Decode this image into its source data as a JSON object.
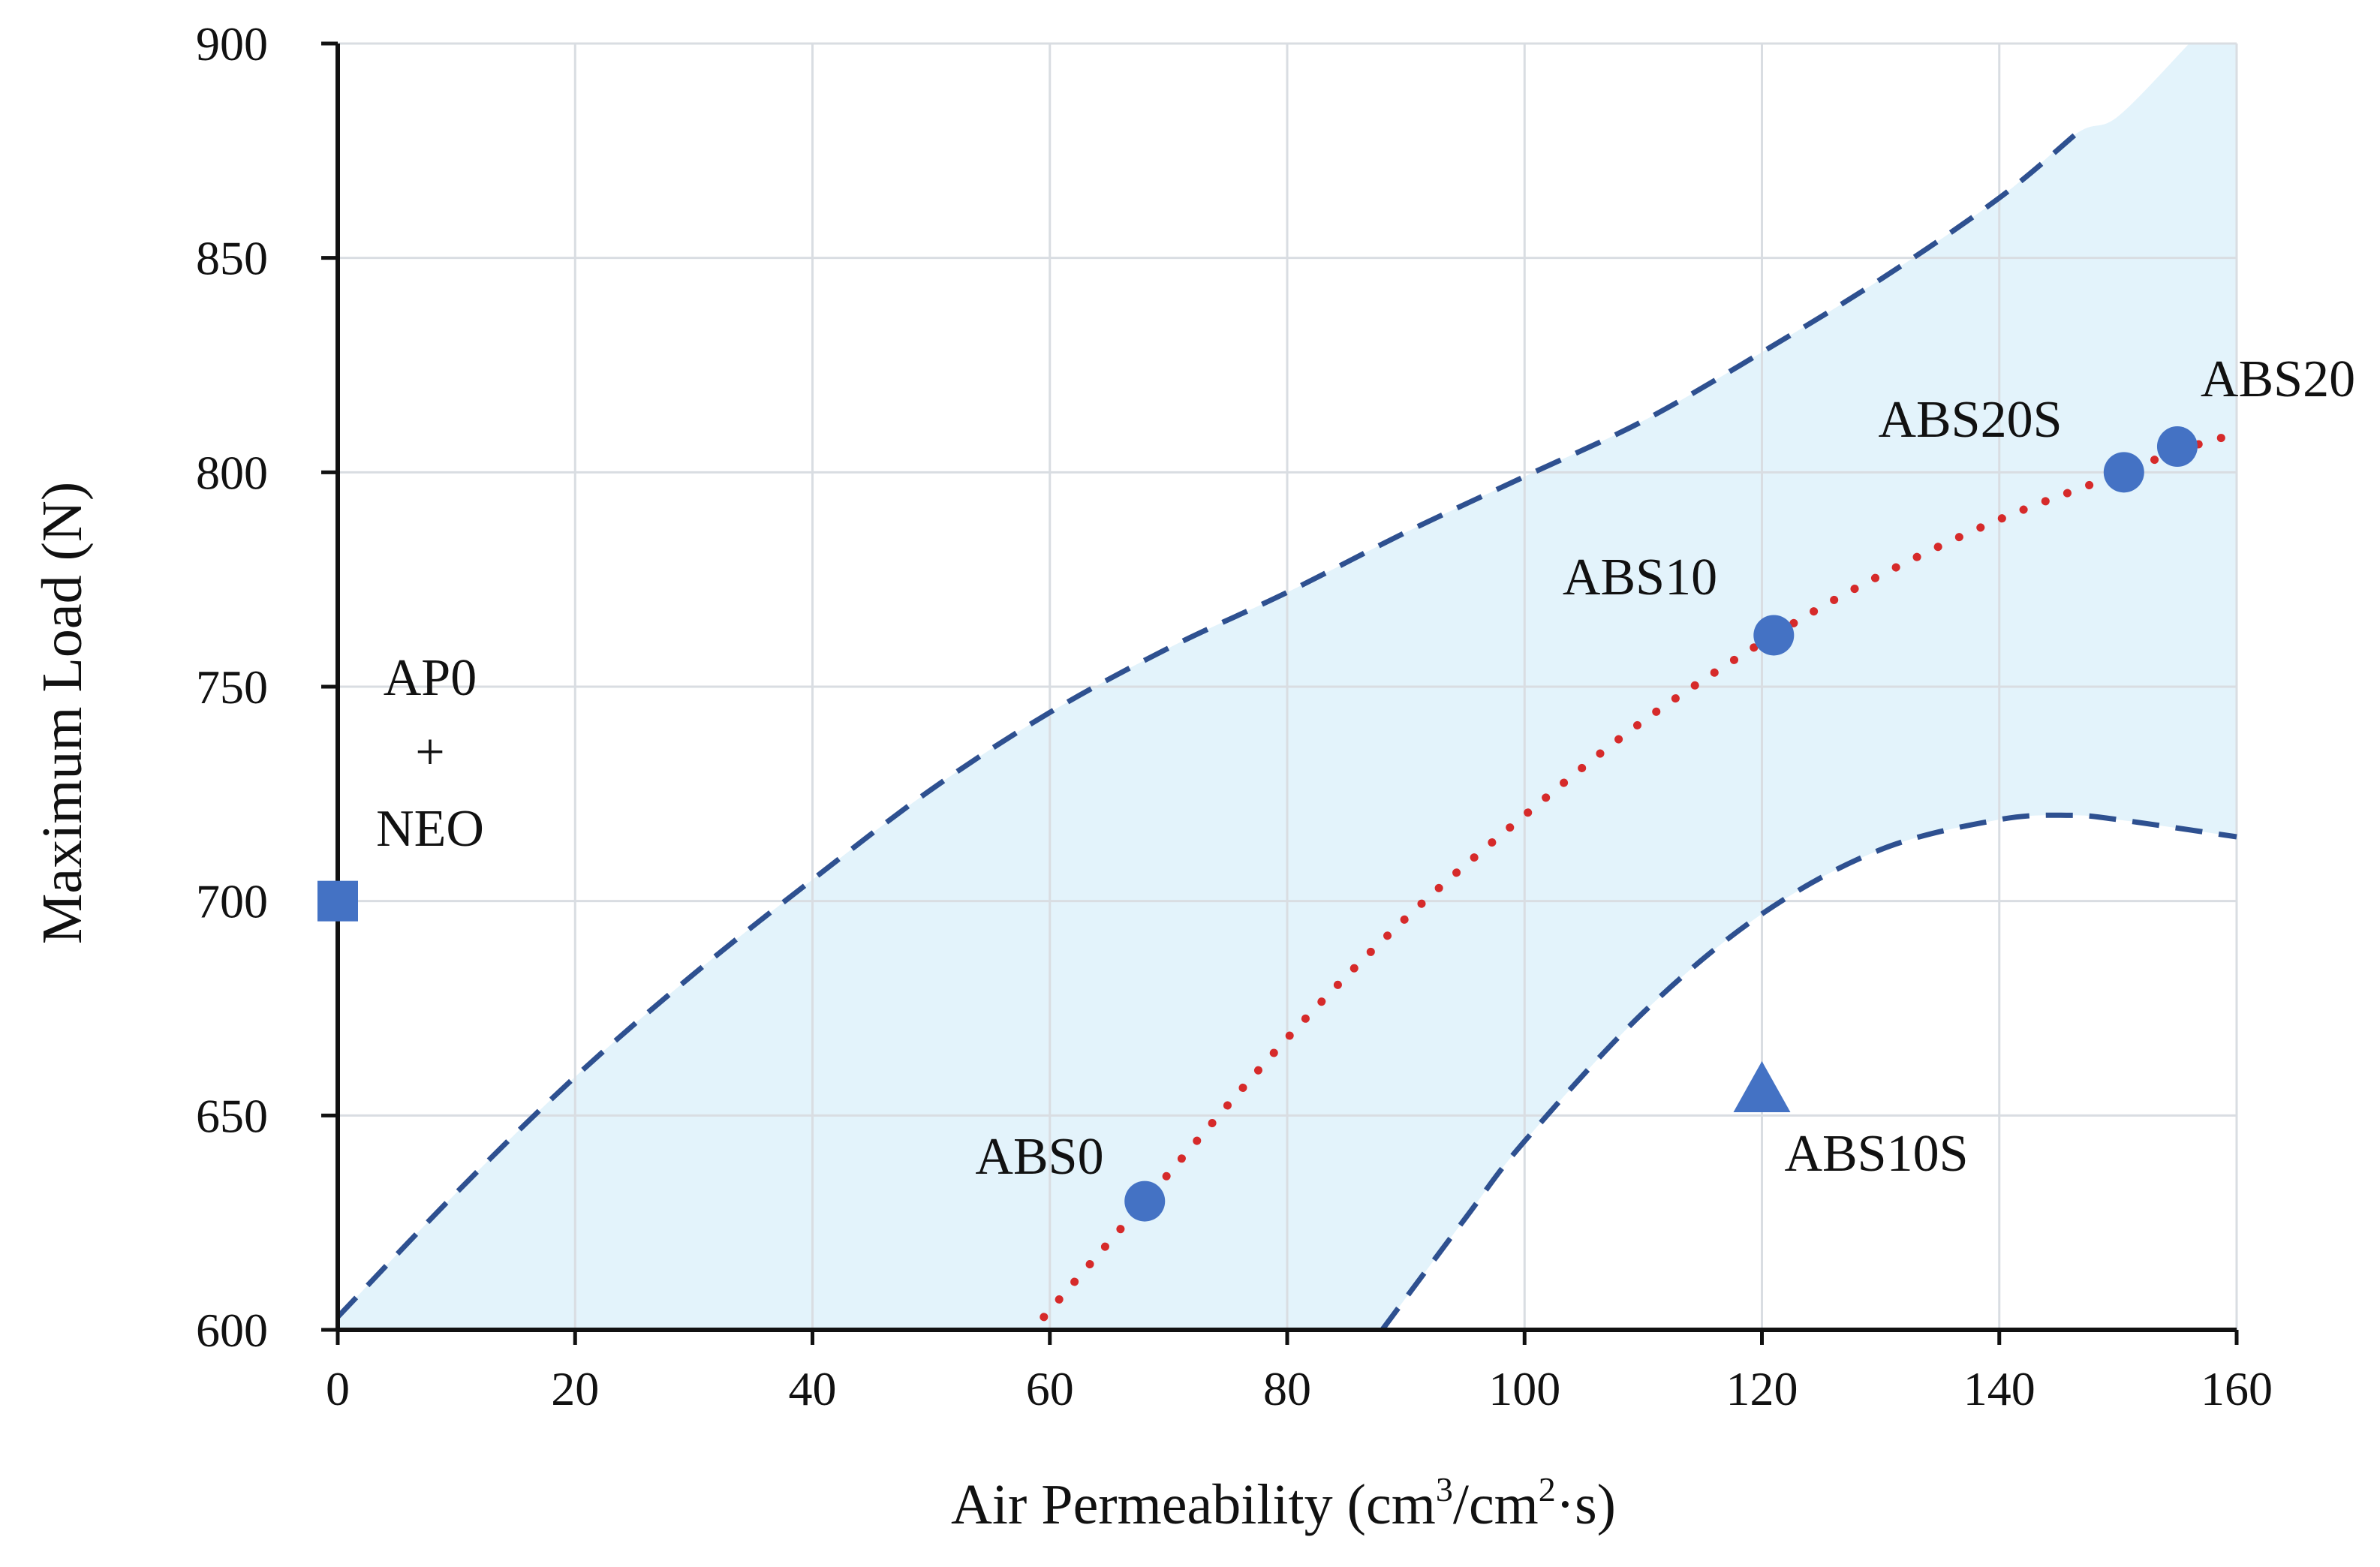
{
  "chart_data": {
    "type": "scatter",
    "xlabel": {
      "main": "Air Permeability (cm",
      "sup1": "3",
      "mid": "/cm",
      "sup2": "2",
      "tail": "·s)"
    },
    "ylabel": "Maximum Load (N)",
    "xlim": [
      0,
      160
    ],
    "ylim": [
      600,
      900
    ],
    "x_ticks": [
      0,
      20,
      40,
      60,
      80,
      100,
      120,
      140,
      160
    ],
    "y_ticks": [
      600,
      650,
      700,
      750,
      800,
      850,
      900
    ],
    "x_tick_labels": [
      "0",
      "20",
      "40",
      "60",
      "80",
      "100",
      "120",
      "140",
      "160"
    ],
    "y_tick_labels": [
      "600",
      "650",
      "700",
      "750",
      "800",
      "850",
      "900"
    ],
    "grid": true,
    "points": [
      {
        "label": "ABS0",
        "x": 68,
        "y": 630,
        "marker": "circle"
      },
      {
        "label": "ABS10",
        "x": 121,
        "y": 762,
        "marker": "circle"
      },
      {
        "label": "ABS20S",
        "x": 150.5,
        "y": 800,
        "marker": "circle"
      },
      {
        "label": "ABS20",
        "x": 155,
        "y": 806,
        "marker": "circle"
      },
      {
        "label": "ABS10S",
        "x": 120,
        "y": 656,
        "marker": "triangle"
      },
      {
        "label": "AP0 + NEO",
        "x": 0,
        "y": 700,
        "marker": "square"
      }
    ],
    "annotations": [
      {
        "id": "abs0",
        "text": "ABS0"
      },
      {
        "id": "abs10",
        "text": "ABS10"
      },
      {
        "id": "abs20s",
        "text": "ABS20S"
      },
      {
        "id": "abs20",
        "text": "ABS20"
      },
      {
        "id": "abs10s",
        "text": "ABS10S"
      },
      {
        "id": "ap0",
        "lines": [
          "AP0",
          "+",
          "NEO"
        ]
      }
    ],
    "fit_curve": {
      "style": "dotted",
      "x": [
        59.5,
        68,
        80,
        90,
        100,
        110,
        121,
        130,
        140,
        150.5,
        155,
        160
      ],
      "y": [
        603,
        630,
        668,
        696,
        720,
        742,
        762,
        776,
        789,
        800,
        805,
        809
      ]
    },
    "confidence_upper": {
      "style": "dashed",
      "x": [
        0,
        10,
        20,
        30,
        40,
        50,
        60,
        70,
        80,
        90,
        100,
        110,
        120,
        130,
        140,
        146.5
      ],
      "y": [
        603,
        632,
        659,
        683,
        705,
        726,
        744,
        759,
        772,
        786,
        799,
        812,
        828,
        845,
        864,
        879
      ]
    },
    "confidence_lower": {
      "style": "dashed",
      "x": [
        88,
        95,
        100,
        110,
        120,
        130,
        140,
        146,
        150,
        160
      ],
      "y": [
        600,
        626,
        644,
        674,
        697,
        712,
        719,
        720,
        719,
        715
      ]
    },
    "band_top_extension": {
      "x": [
        146.5,
        150,
        156
      ],
      "y": [
        879,
        883,
        900
      ]
    },
    "colors": {
      "band": "#e3f3fb",
      "dashed": "#2e5090",
      "fit": "#d62a2a",
      "marker": "#4472c4",
      "grid": "#d9dde2",
      "axis": "#111111"
    }
  }
}
